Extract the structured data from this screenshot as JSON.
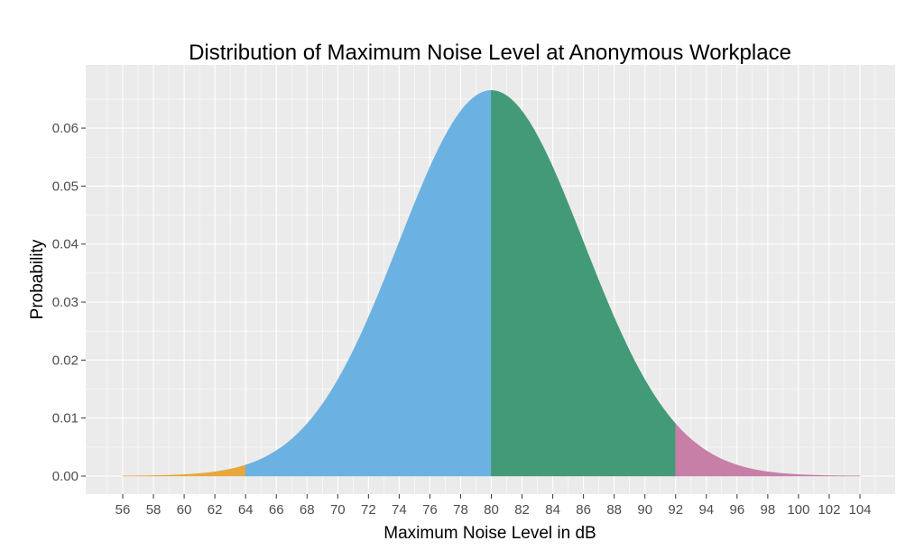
{
  "chart_data": {
    "type": "area",
    "title": "Distribution of Maximum Noise Level at Anonymous Workplace",
    "xlabel": "Maximum Noise Level in dB",
    "ylabel": "Probability",
    "distribution": {
      "family": "normal",
      "mean": 80,
      "sd": 6
    },
    "xlim": [
      56,
      104
    ],
    "ylim": [
      0,
      0.0665
    ],
    "x_ticks": [
      56,
      58,
      60,
      62,
      64,
      66,
      68,
      70,
      72,
      74,
      76,
      78,
      80,
      82,
      84,
      86,
      88,
      90,
      92,
      94,
      96,
      98,
      100,
      102,
      104
    ],
    "y_ticks": [
      0.0,
      0.01,
      0.02,
      0.03,
      0.04,
      0.05,
      0.06
    ],
    "y_tick_labels": [
      "0.00",
      "0.01",
      "0.02",
      "0.03",
      "0.04",
      "0.05",
      "0.06"
    ],
    "regions": [
      {
        "from": 56,
        "to": 64,
        "color": "#E6A83C"
      },
      {
        "from": 64,
        "to": 80,
        "color": "#6BB2E2"
      },
      {
        "from": 80,
        "to": 92,
        "color": "#439A76"
      },
      {
        "from": 92,
        "to": 104,
        "color": "#C77FA8"
      }
    ],
    "panel_background": "#EBEBEB",
    "grid_color": "#FFFFFF",
    "grid": true,
    "legend": "none"
  }
}
